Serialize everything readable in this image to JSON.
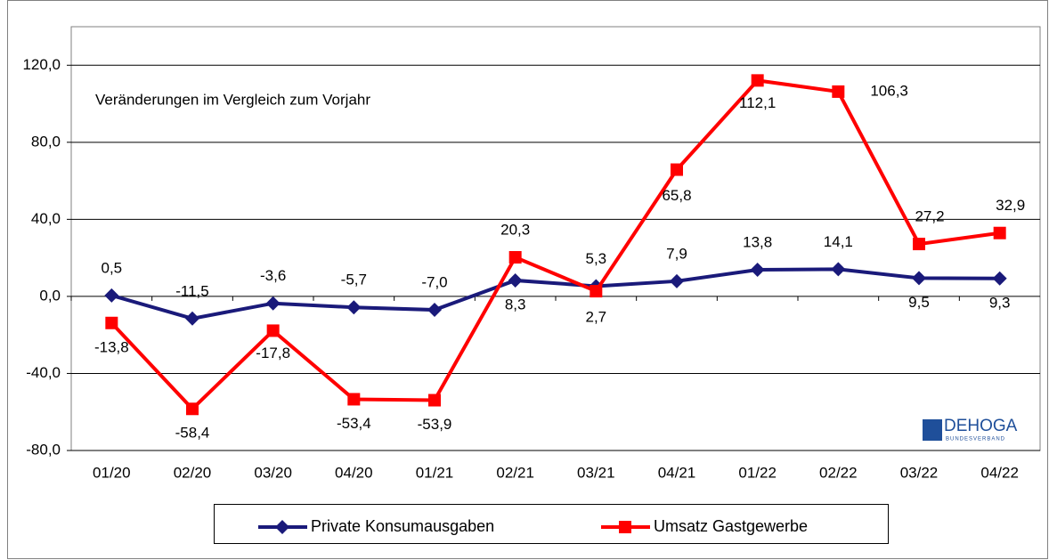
{
  "chart_data": {
    "type": "line",
    "annotation": "Veränderungen im Vergleich zum Vorjahr",
    "logo_text": [
      "DEHOGA",
      "BUNDESVERBAND"
    ],
    "categories": [
      "01/20",
      "02/20",
      "03/20",
      "04/20",
      "01/21",
      "02/21",
      "03/21",
      "04/21",
      "01/22",
      "02/22",
      "03/22",
      "04/22"
    ],
    "series": [
      {
        "name": "Private Konsumausgaben",
        "color": "#1a1a7a",
        "marker": "diamond",
        "values": [
          0.5,
          -11.5,
          -3.6,
          -5.7,
          -7.0,
          8.3,
          5.3,
          7.9,
          13.8,
          14.1,
          9.5,
          9.3
        ],
        "value_labels": [
          "0,5",
          "-11,5",
          "-3,6",
          "-5,7",
          "-7,0",
          "8,3",
          "5,3",
          "7,9",
          "13,8",
          "14,1",
          "9,5",
          "9,3"
        ]
      },
      {
        "name": "Umsatz Gastgewerbe",
        "color": "#ff0000",
        "marker": "square",
        "values": [
          -13.8,
          -58.4,
          -17.8,
          -53.4,
          -53.9,
          20.3,
          2.7,
          65.8,
          112.1,
          106.3,
          27.2,
          32.9
        ],
        "value_labels": [
          "-13,8",
          "-58,4",
          "-17,8",
          "-53,4",
          "-53,9",
          "20,3",
          "2,7",
          "65,8",
          "112,1",
          "106,3",
          "27,2",
          "32,9"
        ]
      }
    ],
    "ylim": [
      -80,
      140
    ],
    "yticks": [
      {
        "value": -80,
        "label": "-80,0"
      },
      {
        "value": -40,
        "label": "-40,0"
      },
      {
        "value": 0,
        "label": "0,0"
      },
      {
        "value": 40,
        "label": "40,0"
      },
      {
        "value": 80,
        "label": "80,0"
      },
      {
        "value": 120,
        "label": "120,0"
      }
    ],
    "grid": true,
    "legend": "bottom"
  }
}
